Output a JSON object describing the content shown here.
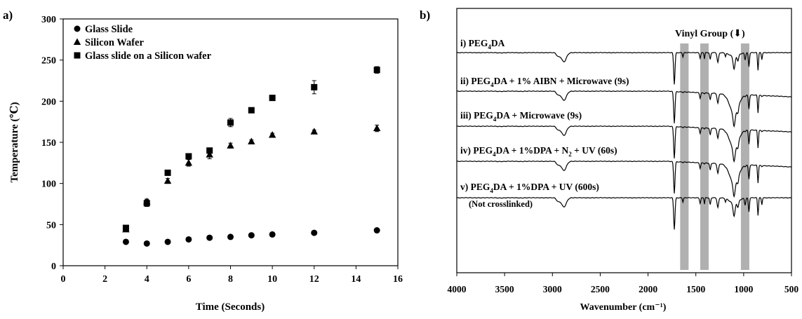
{
  "panels": {
    "a_label": "a)",
    "b_label": "b)"
  },
  "chart_data": [
    {
      "type": "scatter",
      "xlabel": "Time (Seconds)",
      "ylabel": "Temperature (℃)",
      "xlim": [
        0,
        16
      ],
      "ylim": [
        0,
        300
      ],
      "xticks": [
        0,
        2,
        4,
        6,
        8,
        10,
        12,
        14,
        16
      ],
      "yticks": [
        0,
        50,
        100,
        150,
        200,
        250,
        300
      ],
      "grid": false,
      "legend_position": "top-left",
      "series": [
        {
          "name": "Glass Slide",
          "marker": "circle",
          "x": [
            3,
            4,
            5,
            6,
            7,
            8,
            9,
            10,
            12,
            15
          ],
          "y": [
            29,
            27,
            29,
            32,
            34,
            35,
            37,
            38,
            40,
            43
          ],
          "err": [
            1,
            1,
            1,
            1,
            1,
            1,
            1,
            1,
            1,
            1
          ]
        },
        {
          "name": "Silicon Wafer",
          "marker": "triangle",
          "x": [
            3,
            4,
            5,
            6,
            7,
            8,
            9,
            10,
            12,
            15
          ],
          "y": [
            44,
            78,
            103,
            125,
            135,
            146,
            151,
            159,
            163,
            167
          ],
          "err": [
            2,
            3,
            3,
            4,
            5,
            3,
            2,
            2,
            2,
            4
          ]
        },
        {
          "name": "Glass slide on a Silicon wafer",
          "marker": "square",
          "x": [
            3,
            4,
            5,
            6,
            7,
            8,
            9,
            10,
            12,
            15
          ],
          "y": [
            46,
            76,
            113,
            133,
            140,
            174,
            189,
            204,
            217,
            238
          ],
          "err": [
            2,
            4,
            3,
            3,
            3,
            5,
            2,
            2,
            8,
            4
          ]
        }
      ]
    },
    {
      "type": "line",
      "xlabel": "Wavenumber (cm⁻¹)",
      "xlim": [
        4000,
        500
      ],
      "xticks": [
        4000,
        3500,
        3000,
        2500,
        2000,
        1500,
        1000,
        500
      ],
      "annotation": "Vinyl Group (⬇)",
      "highlight_bands": [
        1620,
        1410,
        985
      ],
      "series": [
        {
          "label_prefix": "i)",
          "label_main": "PEG",
          "label_sub": "4",
          "label_rest": "DA",
          "note": ""
        },
        {
          "label_prefix": "ii)",
          "label_main": "PEG",
          "label_sub": "4",
          "label_rest": "DA + 1% AIBN + Microwave (9s)",
          "note": ""
        },
        {
          "label_prefix": "iii)",
          "label_main": "PEG",
          "label_sub": "4",
          "label_rest": "DA + Microwave (9s)",
          "note": ""
        },
        {
          "label_prefix": "iv)",
          "label_main": "PEG",
          "label_sub": "4",
          "label_rest": "DA + 1%DPA + N",
          "label_sub2": "2",
          "label_rest2": " + UV (60s)",
          "note": ""
        },
        {
          "label_prefix": "v)",
          "label_main": "PEG",
          "label_sub": "4",
          "label_rest": "DA + 1%DPA + UV (600s)",
          "note": "(Not crosslinked)"
        }
      ]
    }
  ]
}
